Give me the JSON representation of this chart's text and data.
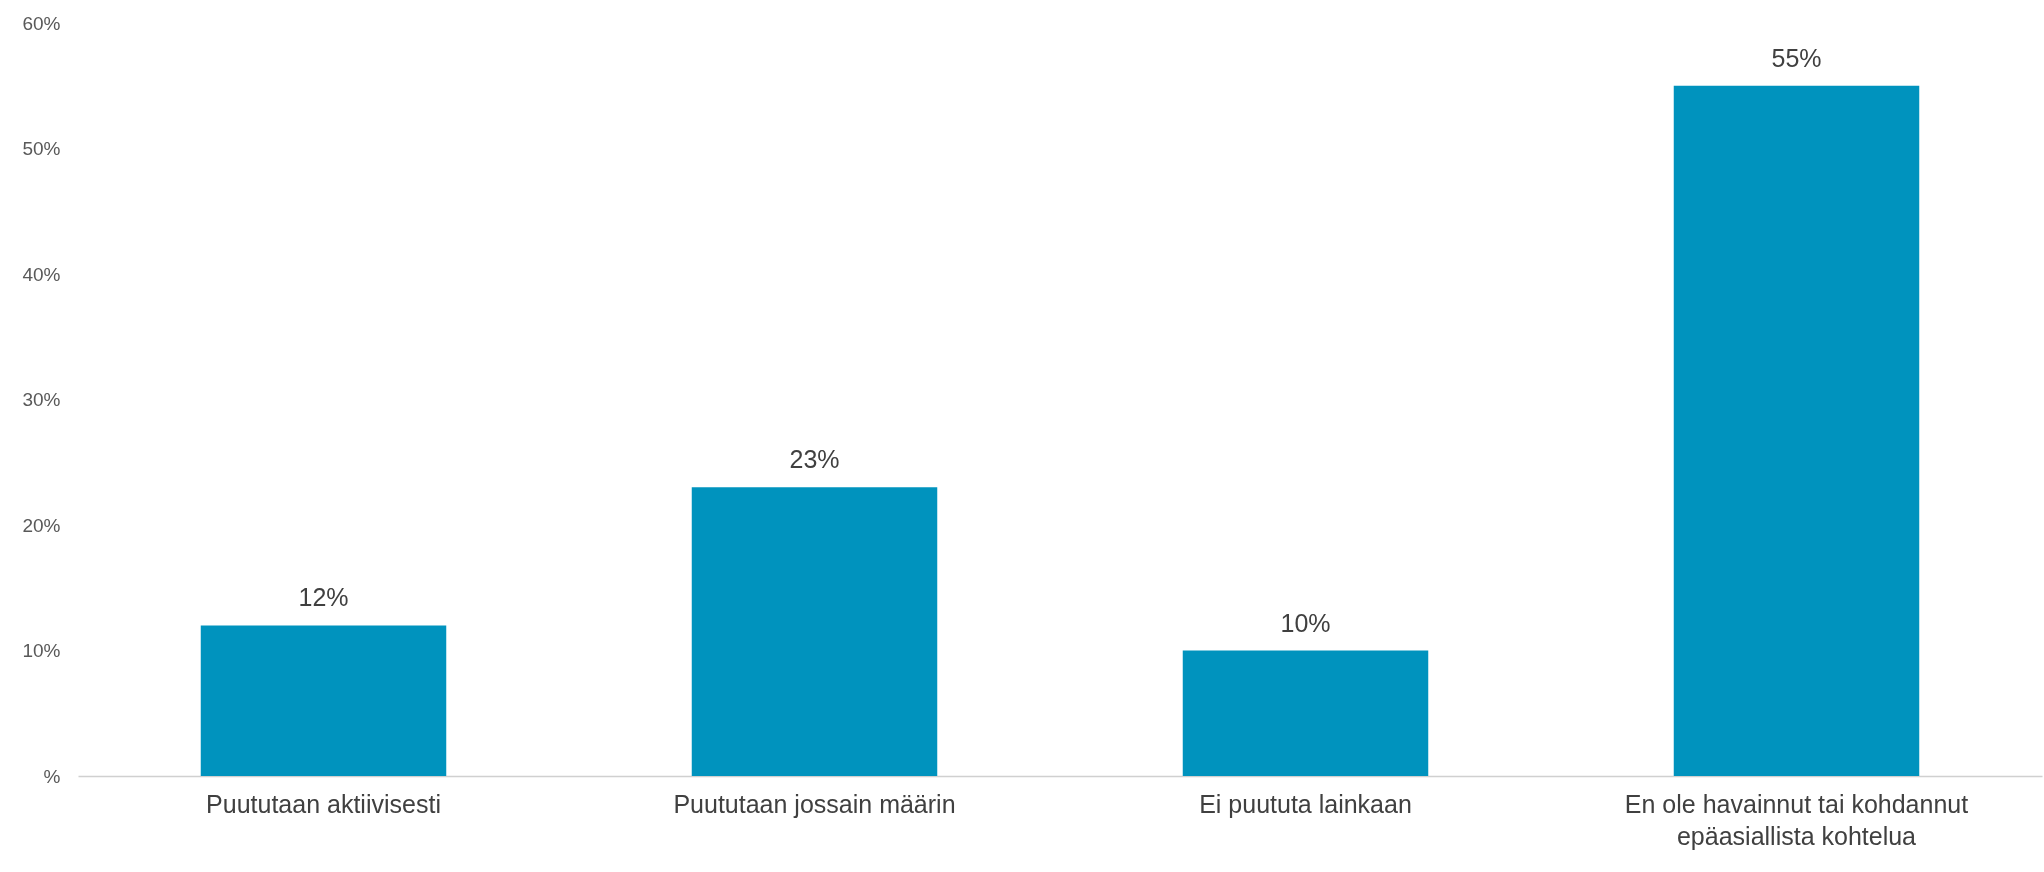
{
  "chart_data": {
    "type": "bar",
    "categories": [
      "Puututaan aktiivisesti",
      "Puututaan jossain määrin",
      "Ei puututa lainkaan",
      "En ole havainnut tai kohdannut epäasiallista kohtelua"
    ],
    "values": [
      12,
      23,
      10,
      55
    ],
    "value_labels": [
      "12%",
      "23%",
      "10%",
      "55%"
    ],
    "color": "#0093be",
    "ylim": [
      0,
      60
    ],
    "yticks": [
      {
        "value": 0,
        "label": "%"
      },
      {
        "value": 10,
        "label": "10%"
      },
      {
        "value": 20,
        "label": "20%"
      },
      {
        "value": 30,
        "label": "30%"
      },
      {
        "value": 40,
        "label": "40%"
      },
      {
        "value": 50,
        "label": "50%"
      },
      {
        "value": 60,
        "label": "60%"
      }
    ],
    "grid": false
  }
}
